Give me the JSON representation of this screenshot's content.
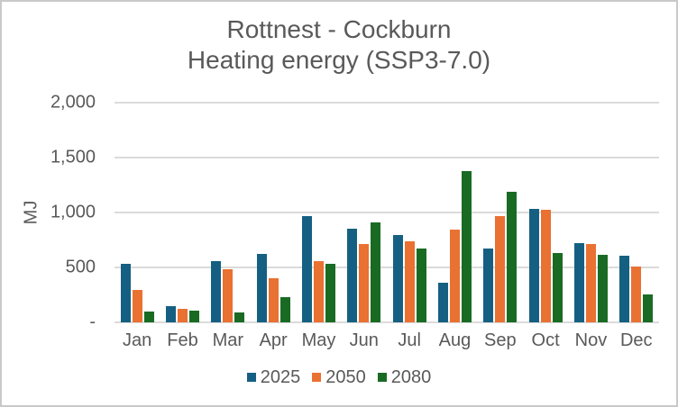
{
  "chart": {
    "title_line1": "Rottnest - Cockburn",
    "title_line2": "Heating energy (SSP3-7.0)"
  },
  "colors": {
    "text": "#595959",
    "gridline": "#dbdbdb",
    "border": "#c9c9c9",
    "background": "#ffffff",
    "series_2025": "#156082",
    "series_2050": "#E97132",
    "series_2080": "#196B24"
  },
  "chart_data": {
    "type": "bar",
    "title": "Rottnest - Cockburn",
    "subtitle": "Heating energy (SSP3-7.0)",
    "xlabel": "",
    "ylabel": "MJ",
    "ylim": [
      0,
      2000
    ],
    "grid": true,
    "legend_position": "bottom",
    "categories": [
      "Jan",
      "Feb",
      "Mar",
      "Apr",
      "May",
      "Jun",
      "Jul",
      "Aug",
      "Sep",
      "Oct",
      "Nov",
      "Dec"
    ],
    "yticks": [
      {
        "label": "2,000",
        "value": 2000
      },
      {
        "label": "1,500",
        "value": 1500
      },
      {
        "label": "1,000",
        "value": 1000
      },
      {
        "label": "500",
        "value": 500
      },
      {
        "label": "-",
        "value": 0
      }
    ],
    "series": [
      {
        "name": "2025",
        "color": "#156082",
        "values": [
          535,
          145,
          555,
          620,
          965,
          855,
          795,
          360,
          670,
          1035,
          720,
          605
        ]
      },
      {
        "name": "2050",
        "color": "#E97132",
        "values": [
          295,
          120,
          485,
          405,
          560,
          710,
          735,
          845,
          970,
          1025,
          710,
          505
        ]
      },
      {
        "name": "2080",
        "color": "#196B24",
        "values": [
          100,
          105,
          90,
          230,
          535,
          910,
          670,
          1380,
          1185,
          630,
          615,
          255
        ]
      }
    ]
  }
}
